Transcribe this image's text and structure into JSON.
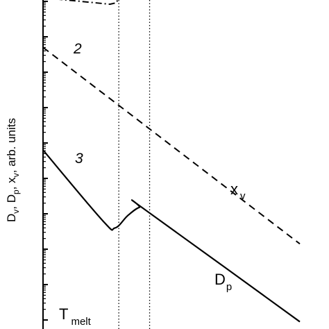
{
  "chart_data": {
    "type": "line",
    "ylabel": "D",
    "ylabel_parts": [
      {
        "base": "D",
        "sub": "v",
        "sep": ", "
      },
      {
        "base": "D",
        "sub": "p",
        "sep": ", "
      },
      {
        "base": "x",
        "sub": "v",
        "sep": ", arb. units"
      }
    ],
    "yscale": "log",
    "y_decades": 9,
    "xlim": [
      0,
      100
    ],
    "ylim": [
      0,
      9
    ],
    "series": [
      {
        "id": "curve-1",
        "style": "dash-dot",
        "x": [
          0,
          12,
          26,
          28.5,
          29.5
        ],
        "y": [
          9.1,
          9.02,
          8.92,
          8.96,
          9.1
        ]
      },
      {
        "id": "curve-2",
        "number_label": "2",
        "name": "x v",
        "style": "dashed",
        "x": [
          0,
          100
        ],
        "y": [
          7.7,
          2.15
        ]
      },
      {
        "id": "curve-3",
        "number_label": "3",
        "name": "D p",
        "style": "solid",
        "x": [
          0,
          23.3,
          28,
          33,
          37.5,
          40,
          100
        ],
        "y": [
          4.8,
          2.8,
          2.6,
          2.95,
          3.18,
          3.1,
          -0.05
        ]
      }
    ],
    "vertical_lines": [
      {
        "x": 29.5,
        "style": "dotted"
      },
      {
        "x": 41.5,
        "style": "dotted"
      }
    ],
    "annotations": {
      "label_2": "2",
      "label_3": "3",
      "xv_base": "x",
      "xv_sub": "v",
      "dp_base": "D",
      "dp_sub": "p",
      "tmelt_base": "T",
      "tmelt_sub": "melt"
    }
  }
}
